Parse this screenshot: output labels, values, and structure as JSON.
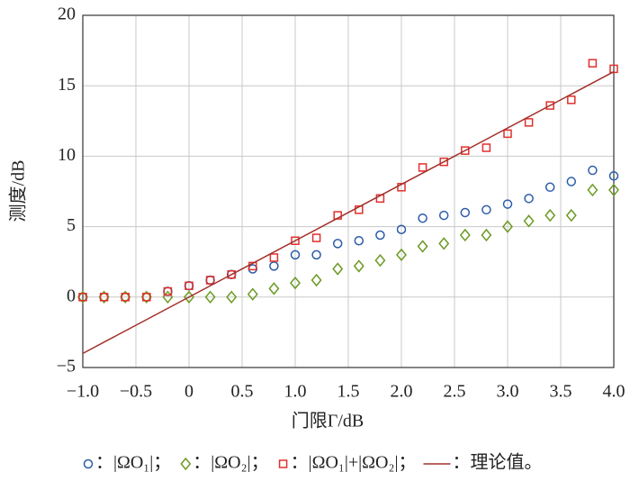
{
  "chart_data": {
    "type": "scatter",
    "xlabel": "门限Γ/dB",
    "ylabel": "测度/dB",
    "xlim": [
      -1,
      4
    ],
    "ylim": [
      -5,
      20
    ],
    "xticks": [
      {
        "value": -1,
        "label": "−1.0"
      },
      {
        "value": -0.5,
        "label": "−0.5"
      },
      0,
      0.5,
      {
        "value": 1,
        "label": "1.0"
      },
      1.5,
      {
        "value": 2,
        "label": "2.0"
      },
      2.5,
      {
        "value": 3,
        "label": "3.0"
      },
      3.5,
      {
        "value": 4,
        "label": "4.0"
      }
    ],
    "yticks": [
      {
        "value": -5,
        "label": "−5"
      },
      0,
      5,
      10,
      15,
      20
    ],
    "grid": true,
    "series": [
      {
        "name": "：|ΩO₁|；",
        "type": "scatter",
        "marker": "circle",
        "color": "#2b5ca8",
        "x": [
          -1.0,
          -0.8,
          -0.6,
          -0.4,
          -0.2,
          0,
          0.2,
          0.4,
          0.6,
          0.8,
          1.0,
          1.2,
          1.4,
          1.6,
          1.8,
          2.0,
          2.2,
          2.4,
          2.6,
          2.8,
          3.0,
          3.2,
          3.4,
          3.6,
          3.8,
          4.0
        ],
        "values": [
          0,
          0,
          0,
          0,
          0.4,
          0.8,
          1.2,
          1.6,
          2.0,
          2.2,
          3.0,
          3.0,
          3.8,
          4.0,
          4.4,
          4.8,
          5.6,
          5.8,
          6.0,
          6.2,
          6.6,
          7.0,
          7.8,
          8.2,
          9.0,
          8.6
        ]
      },
      {
        "name": "：|ΩO₂|；",
        "type": "scatter",
        "marker": "diamond",
        "color": "#6b9a22",
        "x": [
          -1.0,
          -0.8,
          -0.6,
          -0.4,
          -0.2,
          0,
          0.2,
          0.4,
          0.6,
          0.8,
          1.0,
          1.2,
          1.4,
          1.6,
          1.8,
          2.0,
          2.2,
          2.4,
          2.6,
          2.8,
          3.0,
          3.2,
          3.4,
          3.6,
          3.8,
          4.0
        ],
        "values": [
          0,
          0,
          0,
          0,
          0,
          0,
          0,
          0,
          0.2,
          0.6,
          1.0,
          1.2,
          2.0,
          2.2,
          2.6,
          3.0,
          3.6,
          3.8,
          4.4,
          4.4,
          5.0,
          5.4,
          5.8,
          5.8,
          7.6,
          7.6
        ]
      },
      {
        "name": "：|ΩO₁|+|ΩO₂|；",
        "type": "scatter",
        "marker": "square",
        "color": "#e0302c",
        "x": [
          -1.0,
          -0.8,
          -0.6,
          -0.4,
          -0.2,
          0,
          0.2,
          0.4,
          0.6,
          0.8,
          1.0,
          1.2,
          1.4,
          1.6,
          1.8,
          2.0,
          2.2,
          2.4,
          2.6,
          2.8,
          3.0,
          3.2,
          3.4,
          3.6,
          3.8,
          4.0
        ],
        "values": [
          0,
          0,
          0,
          0,
          0.4,
          0.8,
          1.2,
          1.6,
          2.2,
          2.8,
          4.0,
          4.2,
          5.8,
          6.2,
          7.0,
          7.8,
          9.2,
          9.6,
          10.4,
          10.6,
          11.6,
          12.4,
          13.6,
          14.0,
          16.6,
          16.2
        ]
      },
      {
        "name": "：理论值。",
        "type": "line",
        "color": "#a3302a",
        "x": [
          -1,
          4
        ],
        "values": [
          -4,
          16
        ]
      }
    ]
  }
}
